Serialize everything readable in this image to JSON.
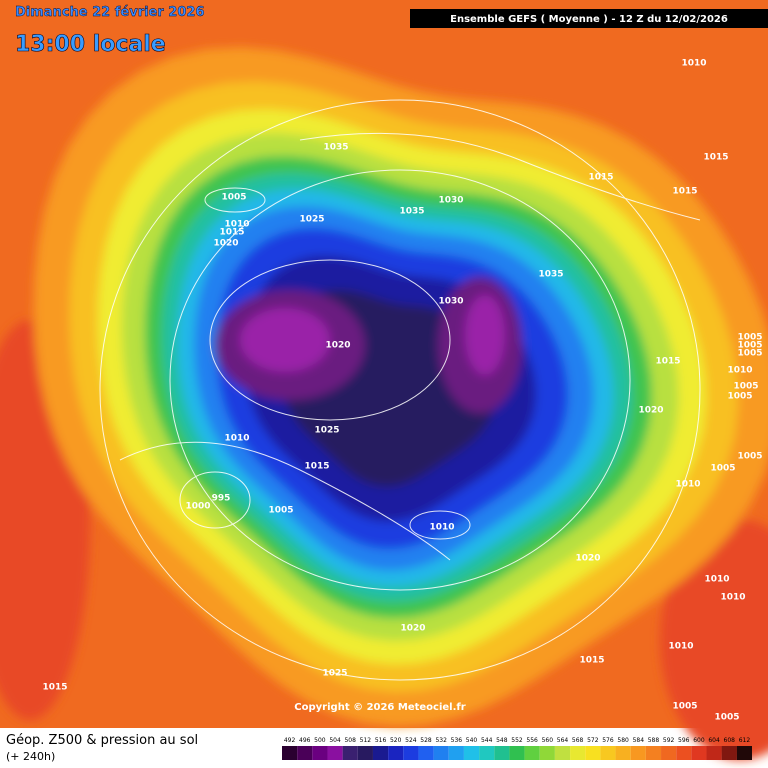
{
  "header": {
    "date": "Dimanche 22 février 2026",
    "time": "13:00 locale",
    "model": "Ensemble GEFS  ( Moyenne )  -  12 Z du 12/02/2026"
  },
  "map": {
    "pressure_labels": [
      1010,
      1035,
      1015,
      1005,
      1015,
      1015,
      1035,
      1030,
      1025,
      1010,
      1015,
      1020,
      1035,
      1030,
      1005,
      1005,
      1005,
      1010,
      1020,
      1015,
      1005,
      1005,
      1020,
      1025,
      1010,
      1005,
      1015,
      1005,
      1010,
      995,
      1000,
      1005,
      1010,
      1020,
      1010,
      1010,
      1020,
      1010,
      1015,
      1025,
      1015,
      1005,
      1005
    ]
  },
  "copyright": "Copyright © 2026 Meteociel.fr",
  "footer": {
    "title": "Géop. Z500 & pression au sol",
    "lead": "(+ 240h)"
  },
  "legend": {
    "levels": [
      492,
      496,
      500,
      504,
      508,
      512,
      516,
      520,
      524,
      528,
      532,
      536,
      540,
      544,
      548,
      552,
      556,
      560,
      564,
      568,
      572,
      576,
      580,
      584,
      588,
      592,
      596,
      600,
      604,
      608,
      612
    ],
    "colors": [
      "#2a0030",
      "#4a0058",
      "#6a0080",
      "#8a10a0",
      "#3a2070",
      "#281a60",
      "#1a1a90",
      "#1a24c0",
      "#1c3ce0",
      "#2060f0",
      "#2080f0",
      "#20a0f0",
      "#20c0e8",
      "#20c8c0",
      "#20c090",
      "#30c050",
      "#60d040",
      "#90d838",
      "#c0e040",
      "#e8e830",
      "#f8e020",
      "#f8c820",
      "#f8b020",
      "#f89820",
      "#f48020",
      "#f06820",
      "#ec5020",
      "#e03820",
      "#c02818",
      "#801810",
      "#200808"
    ]
  }
}
